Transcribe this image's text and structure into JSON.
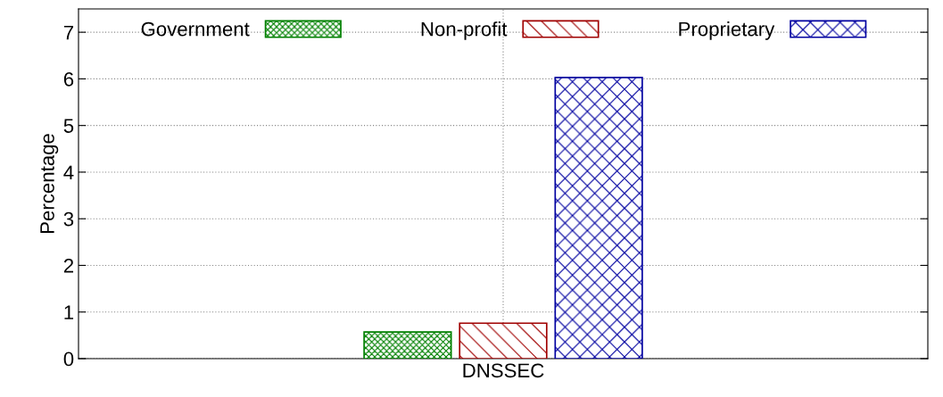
{
  "chart_data": {
    "type": "bar",
    "ylabel": "Percentage",
    "categories": [
      "DNSSEC"
    ],
    "series": [
      {
        "name": "Government",
        "color": "#008000",
        "values": [
          0.57
        ]
      },
      {
        "name": "Non-profit",
        "color": "#a00000",
        "values": [
          0.76
        ]
      },
      {
        "name": "Proprietary",
        "color": "#0000a0",
        "values": [
          6.03
        ]
      }
    ],
    "ylim": [
      0,
      7.5
    ],
    "yticks": [
      0,
      1,
      2,
      3,
      4,
      5,
      6,
      7
    ],
    "grid": true,
    "legend": "top"
  }
}
